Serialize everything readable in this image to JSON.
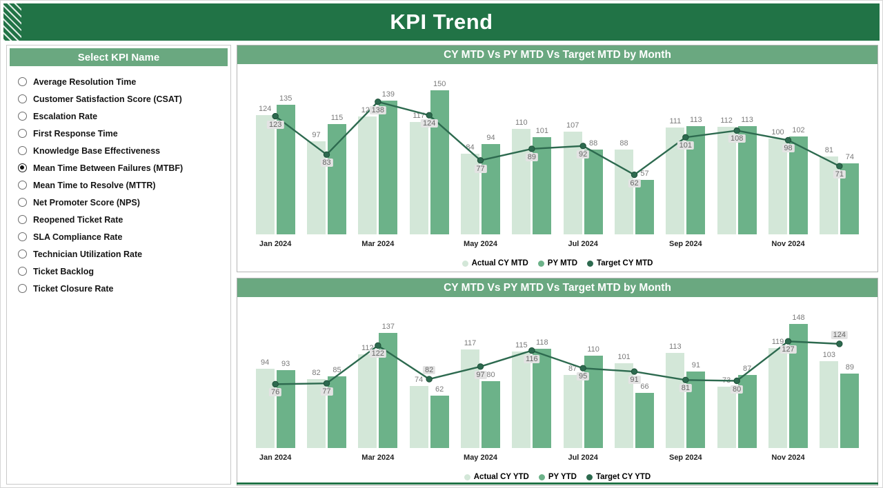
{
  "theme": {
    "header_green": "#217346",
    "band_green": "#6aa880",
    "actual_bar_color": "#d3e7d8",
    "py_bar_color": "#6cb289",
    "target_line_color": "#2d6a4f"
  },
  "header": {
    "title": "KPI Trend"
  },
  "sidebar": {
    "title": "Select KPI Name",
    "items": [
      {
        "label": "Average Resolution Time",
        "selected": false
      },
      {
        "label": "Customer Satisfaction Score (CSAT)",
        "selected": false
      },
      {
        "label": "Escalation Rate",
        "selected": false
      },
      {
        "label": "First Response Time",
        "selected": false
      },
      {
        "label": "Knowledge Base Effectiveness",
        "selected": false
      },
      {
        "label": "Mean Time Between Failures (MTBF)",
        "selected": true
      },
      {
        "label": "Mean Time to Resolve (MTTR)",
        "selected": false
      },
      {
        "label": "Net Promoter Score (NPS)",
        "selected": false
      },
      {
        "label": "Reopened Ticket Rate",
        "selected": false
      },
      {
        "label": "SLA Compliance Rate",
        "selected": false
      },
      {
        "label": "Technician Utilization Rate",
        "selected": false
      },
      {
        "label": "Ticket Backlog",
        "selected": false
      },
      {
        "label": "Ticket Closure Rate",
        "selected": false
      }
    ]
  },
  "chart_data": [
    {
      "type": "bar+line",
      "title": "CY MTD Vs PY MTD Vs Target MTD by Month",
      "categories": [
        "Jan 2024",
        "Feb 2024",
        "Mar 2024",
        "Apr 2024",
        "May 2024",
        "Jun 2024",
        "Jul 2024",
        "Aug 2024",
        "Sep 2024",
        "Oct 2024",
        "Nov 2024",
        "Dec 2024"
      ],
      "x_ticks": [
        {
          "i": 0,
          "label": "Jan 2024"
        },
        {
          "i": 2,
          "label": "Mar 2024"
        },
        {
          "i": 4,
          "label": "May 2024"
        },
        {
          "i": 6,
          "label": "Jul 2024"
        },
        {
          "i": 8,
          "label": "Sep 2024"
        },
        {
          "i": 10,
          "label": "Nov 2024"
        }
      ],
      "ylim": [
        0,
        160
      ],
      "grid": false,
      "legend_position": "bottom",
      "series": [
        {
          "name": "Actual CY MTD",
          "kind": "bar",
          "color": "#d3e7d8",
          "values": [
            124,
            97,
            123,
            117,
            84,
            110,
            107,
            88,
            111,
            112,
            100,
            81
          ]
        },
        {
          "name": "PY MTD",
          "kind": "bar",
          "color": "#6cb289",
          "values": [
            135,
            115,
            139,
            150,
            94,
            101,
            88,
            57,
            113,
            113,
            102,
            74
          ]
        },
        {
          "name": "Target CY MTD",
          "kind": "line",
          "color": "#2d6a4f",
          "values": [
            123,
            83,
            138,
            124,
            77,
            89,
            92,
            62,
            101,
            108,
            98,
            71
          ]
        }
      ]
    },
    {
      "type": "bar+line",
      "title": "CY MTD Vs PY MTD Vs Target MTD by Month",
      "categories": [
        "Jan 2024",
        "Feb 2024",
        "Mar 2024",
        "Apr 2024",
        "May 2024",
        "Jun 2024",
        "Jul 2024",
        "Aug 2024",
        "Sep 2024",
        "Oct 2024",
        "Nov 2024",
        "Dec 2024"
      ],
      "x_ticks": [
        {
          "i": 0,
          "label": "Jan 2024"
        },
        {
          "i": 2,
          "label": "Mar 2024"
        },
        {
          "i": 4,
          "label": "May 2024"
        },
        {
          "i": 6,
          "label": "Jul 2024"
        },
        {
          "i": 8,
          "label": "Sep 2024"
        },
        {
          "i": 10,
          "label": "Nov 2024"
        }
      ],
      "ylim": [
        0,
        160
      ],
      "grid": false,
      "legend_position": "bottom",
      "series": [
        {
          "name": "Actual CY YTD",
          "kind": "bar",
          "color": "#d3e7d8",
          "values": [
            94,
            82,
            112,
            74,
            117,
            115,
            87,
            101,
            113,
            73,
            119,
            103
          ]
        },
        {
          "name": "PY YTD",
          "kind": "bar",
          "color": "#6cb289",
          "values": [
            93,
            85,
            137,
            62,
            80,
            118,
            110,
            66,
            91,
            87,
            148,
            89
          ]
        },
        {
          "name": "Target CY YTD",
          "kind": "line",
          "color": "#2d6a4f",
          "values": [
            76,
            77,
            122,
            82,
            97,
            116,
            95,
            91,
            81,
            80,
            127,
            124
          ]
        }
      ]
    }
  ]
}
